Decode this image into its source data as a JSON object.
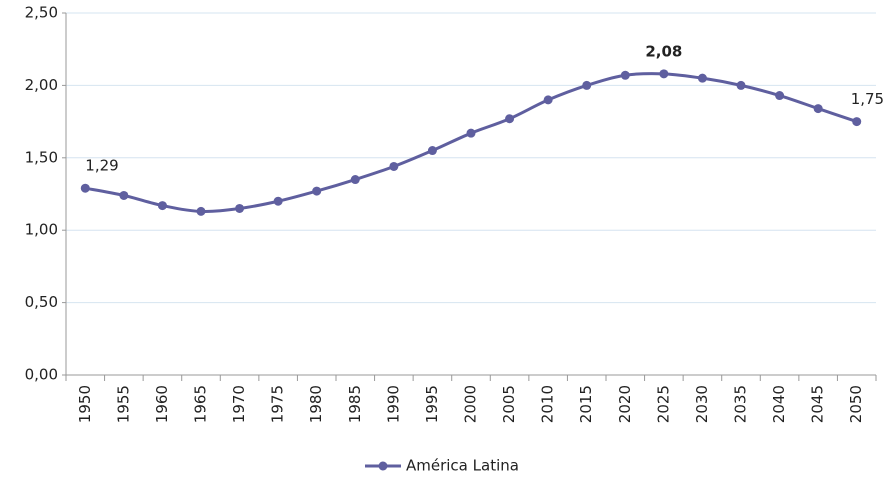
{
  "chart_data": {
    "type": "line",
    "categories": [
      "1950",
      "1955",
      "1960",
      "1965",
      "1970",
      "1975",
      "1980",
      "1985",
      "1990",
      "1995",
      "2000",
      "2005",
      "2010",
      "2015",
      "2020",
      "2025",
      "2030",
      "2035",
      "2040",
      "2045",
      "2050"
    ],
    "series": [
      {
        "name": "América Latina",
        "color": "#5f5f9f",
        "values": [
          1.29,
          1.24,
          1.17,
          1.13,
          1.15,
          1.2,
          1.27,
          1.35,
          1.44,
          1.55,
          1.67,
          1.77,
          1.9,
          2.0,
          2.07,
          2.08,
          2.05,
          2.0,
          1.93,
          1.84,
          1.75
        ],
        "value_labels": [
          "1,29",
          null,
          null,
          null,
          null,
          null,
          null,
          null,
          null,
          null,
          null,
          null,
          null,
          null,
          null,
          "2,08",
          null,
          null,
          null,
          null,
          "1,75"
        ]
      }
    ],
    "ylim": [
      0,
      2.5
    ],
    "yticks": [
      {
        "value": 0,
        "label": "0,00"
      },
      {
        "value": 0.5,
        "label": "0,50"
      },
      {
        "value": 1,
        "label": "1,00"
      },
      {
        "value": 1.5,
        "label": "1,50"
      },
      {
        "value": 2,
        "label": "2,00"
      },
      {
        "value": 2.5,
        "label": "2,50"
      }
    ],
    "grid": true,
    "legend": "bottom"
  }
}
